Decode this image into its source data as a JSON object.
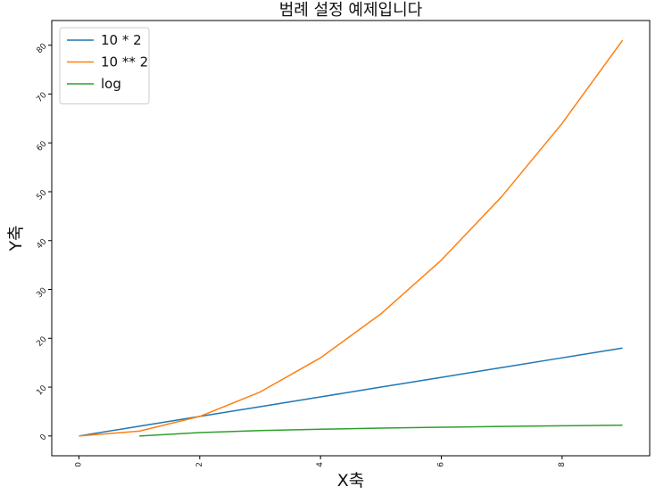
{
  "chart_data": {
    "type": "line",
    "title": "범례 설정 예제입니다",
    "xlabel": "X축",
    "ylabel": "Y축",
    "xlim": [
      -0.45,
      9.45
    ],
    "ylim": [
      -4.05,
      85.05
    ],
    "xticks": [
      0,
      2,
      4,
      6,
      8
    ],
    "yticks": [
      0,
      10,
      20,
      30,
      40,
      50,
      60,
      70,
      80
    ],
    "xtick_rotation": 90,
    "ytick_rotation": 45,
    "grid": false,
    "legend_position": "upper-left",
    "series": [
      {
        "name": "10 * 2",
        "color": "#1f77b4",
        "x": [
          0,
          1,
          2,
          3,
          4,
          5,
          6,
          7,
          8,
          9
        ],
        "y": [
          0,
          2,
          4,
          6,
          8,
          10,
          12,
          14,
          16,
          18
        ]
      },
      {
        "name": "10 ** 2",
        "color": "#ff7f0e",
        "x": [
          0,
          1,
          2,
          3,
          4,
          5,
          6,
          7,
          8,
          9
        ],
        "y": [
          0,
          1,
          4,
          9,
          16,
          25,
          36,
          49,
          64,
          81
        ]
      },
      {
        "name": "log",
        "color": "#2ca02c",
        "x": [
          1,
          2,
          3,
          4,
          5,
          6,
          7,
          8,
          9
        ],
        "y": [
          0,
          0.693,
          1.099,
          1.386,
          1.609,
          1.792,
          1.946,
          2.079,
          2.197
        ]
      }
    ]
  }
}
